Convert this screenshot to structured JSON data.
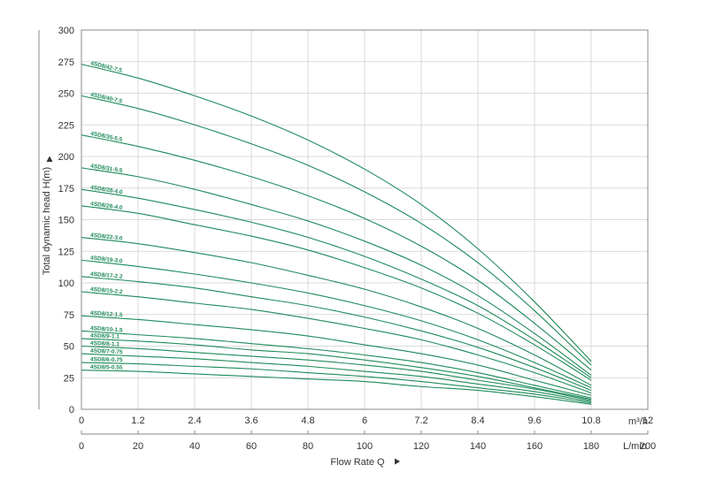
{
  "chart_data": {
    "type": "line",
    "xlabel": "Flow Rate Q",
    "ylabel": "Total dynamic head H(m)",
    "x_unit": "m³/h",
    "x2_unit": "L/min",
    "xlim": [
      0,
      12
    ],
    "ylim": [
      0,
      300
    ],
    "x_ticks": [
      "0",
      "1.2",
      "2.4",
      "3.6",
      "4.8",
      "6",
      "7.2",
      "8.4",
      "9.6",
      "10.8",
      "12"
    ],
    "x2_ticks": [
      "0",
      "20",
      "40",
      "60",
      "80",
      "100",
      "120",
      "140",
      "160",
      "180",
      "200"
    ],
    "y_ticks": [
      "0",
      "25",
      "50",
      "75",
      "100",
      "125",
      "150",
      "175",
      "200",
      "225",
      "250",
      "275",
      "300"
    ],
    "grid": true,
    "line_color": "#1d8a5a",
    "series": [
      {
        "name": "4SD8/42-7.5",
        "x": [
          0,
          1.2,
          2.4,
          3.6,
          4.8,
          6,
          7.2,
          8.4,
          9.6,
          10.8
        ],
        "values": [
          273,
          262,
          248,
          232,
          213,
          190,
          162,
          127,
          85,
          38
        ]
      },
      {
        "name": "4SD8/40-7.5",
        "x": [
          0,
          1.2,
          2.4,
          3.6,
          4.8,
          6,
          7.2,
          8.4,
          9.6,
          10.8
        ],
        "values": [
          248,
          238,
          225,
          210,
          193,
          172,
          147,
          116,
          78,
          35
        ]
      },
      {
        "name": "4SD8/35-5.5",
        "x": [
          0,
          1.2,
          2.4,
          3.6,
          4.8,
          6,
          7.2,
          8.4,
          9.6,
          10.8
        ],
        "values": [
          217,
          208,
          197,
          184,
          169,
          151,
          129,
          102,
          68,
          31
        ]
      },
      {
        "name": "4SD8/31-5.5",
        "x": [
          0,
          1.2,
          2.4,
          3.6,
          4.8,
          6,
          7.2,
          8.4,
          9.6,
          10.8
        ],
        "values": [
          191,
          184,
          174,
          162,
          149,
          133,
          114,
          90,
          60,
          27
        ]
      },
      {
        "name": "4SD8/28-4.0",
        "x": [
          0,
          1.2,
          2.4,
          3.6,
          4.8,
          6,
          7.2,
          8.4,
          9.6,
          10.8
        ],
        "values": [
          174,
          167,
          158,
          148,
          136,
          121,
          103,
          82,
          55,
          25
        ]
      },
      {
        "name": "4SD8/26-4.0",
        "x": [
          0,
          1.2,
          2.4,
          3.6,
          4.8,
          6,
          7.2,
          8.4,
          9.6,
          10.8
        ],
        "values": [
          161,
          155,
          146,
          137,
          126,
          112,
          96,
          76,
          51,
          23
        ]
      },
      {
        "name": "4SD8/22-3.0",
        "x": [
          0,
          1.2,
          2.4,
          3.6,
          4.8,
          6,
          7.2,
          8.4,
          9.6,
          10.8
        ],
        "values": [
          136,
          131,
          124,
          116,
          106,
          95,
          81,
          64,
          43,
          19
        ]
      },
      {
        "name": "4SD8/19-3.0",
        "x": [
          0,
          1.2,
          2.4,
          3.6,
          4.8,
          6,
          7.2,
          8.4,
          9.6,
          10.8
        ],
        "values": [
          118,
          113,
          107,
          100,
          92,
          82,
          70,
          55,
          37,
          17
        ]
      },
      {
        "name": "4SD8/17-2.2",
        "x": [
          0,
          1.2,
          2.4,
          3.6,
          4.8,
          6,
          7.2,
          8.4,
          9.6,
          10.8
        ],
        "values": [
          105,
          101,
          96,
          89,
          82,
          73,
          62,
          49,
          33,
          15
        ]
      },
      {
        "name": "4SD8/15-2.2",
        "x": [
          0,
          1.2,
          2.4,
          3.6,
          4.8,
          6,
          7.2,
          8.4,
          9.6,
          10.8
        ],
        "values": [
          93,
          89,
          84,
          79,
          72,
          64,
          55,
          43,
          29,
          13
        ]
      },
      {
        "name": "4SD8/12-1.5",
        "x": [
          0,
          1.2,
          2.4,
          3.6,
          4.8,
          6,
          7.2,
          8.4,
          9.6,
          10.8
        ],
        "values": [
          74,
          71,
          67,
          63,
          58,
          51,
          44,
          35,
          23,
          11
        ]
      },
      {
        "name": "4SD8/10-1.5",
        "x": [
          0,
          1.2,
          2.4,
          3.6,
          4.8,
          6,
          7.2,
          8.4,
          9.6,
          10.8
        ],
        "values": [
          62,
          59,
          56,
          52,
          48,
          43,
          37,
          29,
          19,
          9
        ]
      },
      {
        "name": "4SD8/9-1.1",
        "x": [
          0,
          1.2,
          2.4,
          3.6,
          4.8,
          6,
          7.2,
          8.4,
          9.6,
          10.8
        ],
        "values": [
          56,
          54,
          51,
          47,
          44,
          39,
          33,
          26,
          17,
          8
        ]
      },
      {
        "name": "4SD8/8-1.1",
        "x": [
          0,
          1.2,
          2.4,
          3.6,
          4.8,
          6,
          7.2,
          8.4,
          9.6,
          10.8
        ],
        "values": [
          50,
          48,
          45,
          42,
          39,
          35,
          30,
          23,
          16,
          7
        ]
      },
      {
        "name": "4SD8/7-0.75",
        "x": [
          0,
          1.2,
          2.4,
          3.6,
          4.8,
          6,
          7.2,
          8.4,
          9.6,
          10.8
        ],
        "values": [
          44,
          42,
          40,
          37,
          34,
          30,
          26,
          20,
          14,
          6
        ]
      },
      {
        "name": "4SD8/6-0.75",
        "x": [
          0,
          1.2,
          2.4,
          3.6,
          4.8,
          6,
          7.2,
          8.4,
          9.6,
          10.8
        ],
        "values": [
          37,
          36,
          34,
          32,
          29,
          26,
          22,
          17,
          12,
          5
        ]
      },
      {
        "name": "4SD8/5-0.55",
        "x": [
          0,
          1.2,
          2.4,
          3.6,
          4.8,
          6,
          7.2,
          8.4,
          9.6,
          10.8
        ],
        "values": [
          31,
          30,
          28,
          26,
          24,
          22,
          18,
          15,
          10,
          4
        ]
      }
    ]
  }
}
